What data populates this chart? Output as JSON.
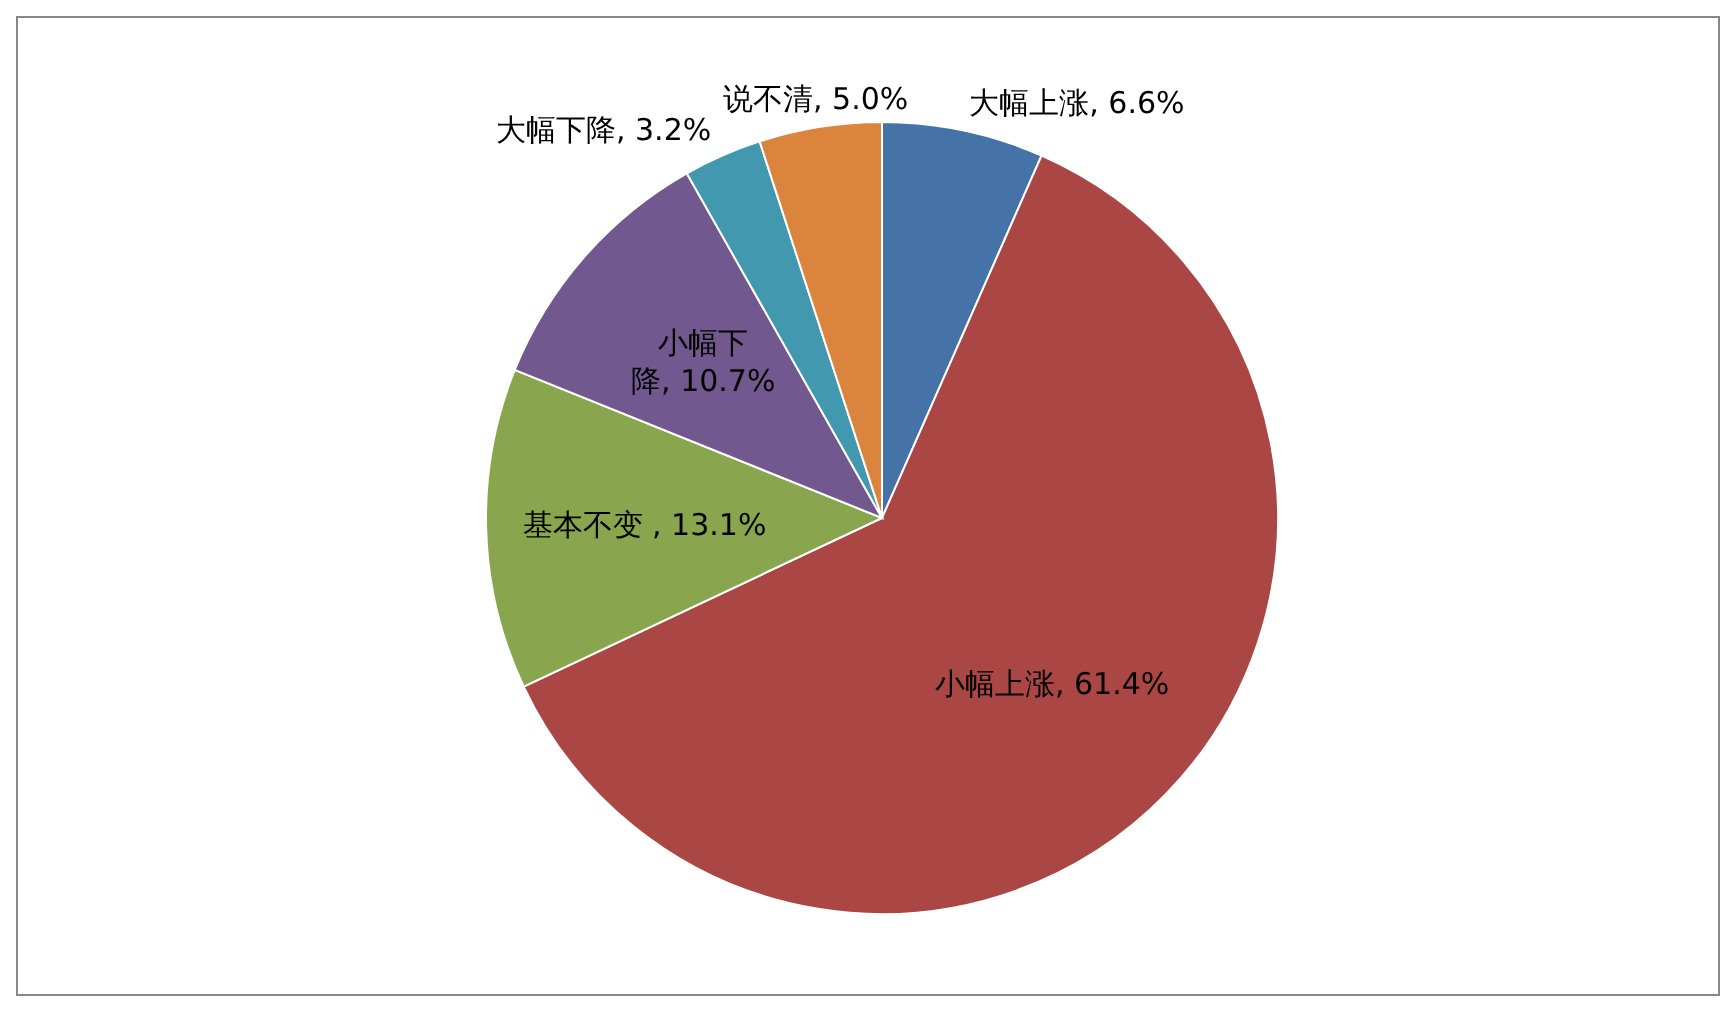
{
  "chart_data": {
    "type": "pie",
    "categories": [
      "大幅上涨",
      "小幅上涨",
      "基本不变 ",
      "小幅下降",
      "大幅下降",
      "说不清"
    ],
    "values": [
      6.6,
      61.4,
      13.1,
      10.7,
      3.2,
      5.0
    ],
    "colors": [
      "#4572a7",
      "#aa4643",
      "#89a54e",
      "#71588f",
      "#4198af",
      "#db843d"
    ],
    "value_labels": [
      "6.6%",
      "61.4%",
      "13.1%",
      "10.7%",
      "3.2%",
      "5.0%"
    ],
    "legend": false
  }
}
